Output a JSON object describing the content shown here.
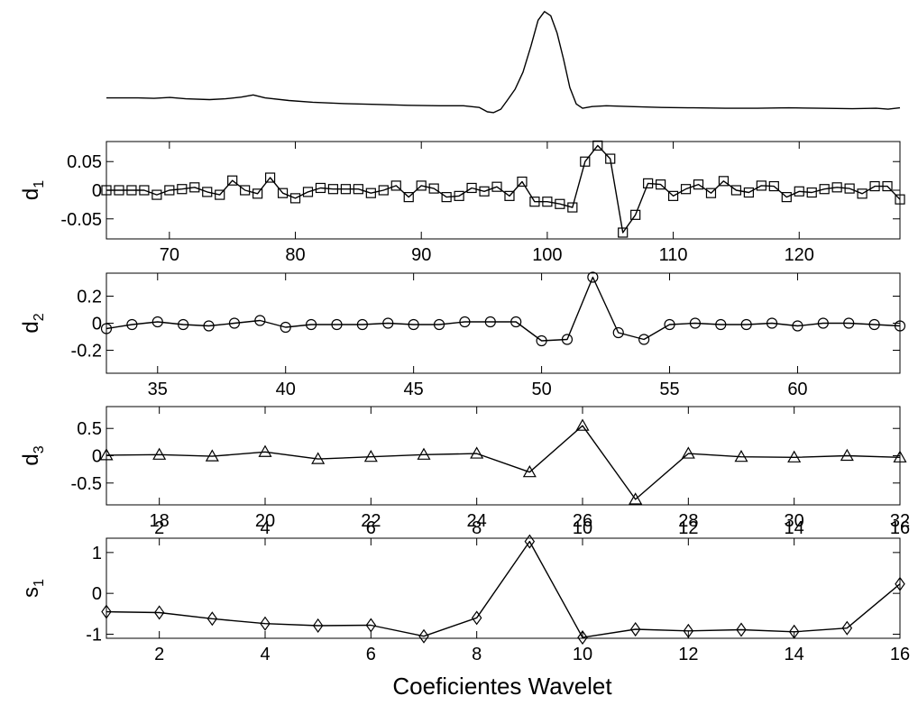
{
  "xlabel": "Coeficientes Wavelet",
  "chart_data": [
    {
      "id": "signal",
      "type": "line",
      "title": "",
      "ylabel": "",
      "xlim": [
        0,
        1000
      ],
      "ylim": [
        -0.15,
        1.05
      ],
      "show_axes": false,
      "points": [
        [
          0,
          0.0
        ],
        [
          40,
          0.0
        ],
        [
          60,
          -0.005
        ],
        [
          80,
          0.005
        ],
        [
          100,
          -0.01
        ],
        [
          130,
          -0.02
        ],
        [
          150,
          -0.01
        ],
        [
          170,
          0.01
        ],
        [
          185,
          0.035
        ],
        [
          200,
          0.0
        ],
        [
          230,
          -0.03
        ],
        [
          260,
          -0.05
        ],
        [
          300,
          -0.065
        ],
        [
          340,
          -0.075
        ],
        [
          380,
          -0.085
        ],
        [
          420,
          -0.09
        ],
        [
          450,
          -0.09
        ],
        [
          470,
          -0.11
        ],
        [
          480,
          -0.16
        ],
        [
          488,
          -0.17
        ],
        [
          497,
          -0.13
        ],
        [
          505,
          -0.03
        ],
        [
          515,
          0.1
        ],
        [
          525,
          0.3
        ],
        [
          535,
          0.6
        ],
        [
          544,
          0.9
        ],
        [
          552,
          1.0
        ],
        [
          560,
          0.95
        ],
        [
          568,
          0.75
        ],
        [
          576,
          0.45
        ],
        [
          584,
          0.12
        ],
        [
          592,
          -0.07
        ],
        [
          600,
          -0.12
        ],
        [
          612,
          -0.1
        ],
        [
          630,
          -0.09
        ],
        [
          660,
          -0.1
        ],
        [
          700,
          -0.11
        ],
        [
          740,
          -0.115
        ],
        [
          780,
          -0.12
        ],
        [
          820,
          -0.12
        ],
        [
          860,
          -0.115
        ],
        [
          900,
          -0.12
        ],
        [
          940,
          -0.125
        ],
        [
          970,
          -0.12
        ],
        [
          985,
          -0.13
        ],
        [
          1000,
          -0.115
        ]
      ]
    },
    {
      "id": "d1",
      "type": "line",
      "ylabel_main": "d",
      "ylabel_sub": "1",
      "xlim": [
        65,
        128
      ],
      "ylim": [
        -0.085,
        0.085
      ],
      "xticks": [
        70,
        80,
        90,
        100,
        110,
        120
      ],
      "xtick_labels": [
        "70",
        "80",
        "90",
        "100",
        "110",
        "120"
      ],
      "xtick_pos": "bottom",
      "yticks": [
        0.05,
        0,
        -0.05
      ],
      "ytick_labels": [
        "0.05",
        "0",
        "-0.05"
      ],
      "marker": "square",
      "x": [
        65,
        66,
        67,
        68,
        69,
        70,
        71,
        72,
        73,
        74,
        75,
        76,
        77,
        78,
        79,
        80,
        81,
        82,
        83,
        84,
        85,
        86,
        87,
        88,
        89,
        90,
        91,
        92,
        93,
        94,
        95,
        96,
        97,
        98,
        99,
        100,
        101,
        102,
        103,
        104,
        105,
        106,
        107,
        108,
        109,
        110,
        111,
        112,
        113,
        114,
        115,
        116,
        117,
        118,
        119,
        120,
        121,
        122,
        123,
        124,
        125,
        126,
        127,
        128
      ],
      "values": [
        0,
        0,
        0,
        0,
        -0.008,
        0,
        0.002,
        0.005,
        -0.003,
        -0.008,
        0.017,
        0,
        -0.006,
        0.022,
        -0.005,
        -0.014,
        -0.003,
        0.004,
        0.002,
        0.002,
        0.002,
        -0.005,
        0,
        0.008,
        -0.012,
        0.008,
        0.003,
        -0.012,
        -0.01,
        0.004,
        -0.002,
        0.006,
        -0.01,
        0.015,
        -0.02,
        -0.02,
        -0.024,
        -0.03,
        0.05,
        0.078,
        0.055,
        -0.074,
        -0.043,
        0.012,
        0.01,
        -0.01,
        0.002,
        0.01,
        -0.005,
        0.016,
        0,
        -0.004,
        0.008,
        0.007,
        -0.012,
        -0.002,
        -0.004,
        0.002,
        0.005,
        0.003,
        -0.006,
        0.007,
        0.007,
        -0.016
      ]
    },
    {
      "id": "d2",
      "type": "line",
      "ylabel_main": "d",
      "ylabel_sub": "2",
      "xlim": [
        33,
        64
      ],
      "ylim": [
        -0.37,
        0.37
      ],
      "xticks": [
        35,
        40,
        45,
        50,
        55,
        60
      ],
      "xtick_labels": [
        "35",
        "40",
        "45",
        "50",
        "55",
        "60"
      ],
      "xtick_pos": "bottom",
      "yticks": [
        0.2,
        0,
        -0.2
      ],
      "ytick_labels": [
        "0.2",
        "0",
        "-0.2"
      ],
      "marker": "circle",
      "x": [
        33,
        34,
        35,
        36,
        37,
        38,
        39,
        40,
        41,
        42,
        43,
        44,
        45,
        46,
        47,
        48,
        49,
        50,
        51,
        52,
        53,
        54,
        55,
        56,
        57,
        58,
        59,
        60,
        61,
        62,
        63,
        64
      ],
      "values": [
        -0.04,
        -0.01,
        0.01,
        -0.01,
        -0.02,
        0,
        0.02,
        -0.03,
        -0.01,
        -0.01,
        -0.01,
        0,
        -0.01,
        -0.01,
        0.01,
        0.01,
        0.01,
        -0.13,
        -0.12,
        0.34,
        -0.07,
        -0.12,
        -0.01,
        0,
        -0.01,
        -0.01,
        0,
        -0.02,
        0,
        0,
        -0.01,
        -0.02
      ]
    },
    {
      "id": "d3",
      "type": "line",
      "ylabel_main": "d",
      "ylabel_sub": "3",
      "xlim": [
        17,
        32
      ],
      "ylim": [
        -0.9,
        0.9
      ],
      "xticks": [
        18,
        20,
        22,
        24,
        26,
        28,
        30,
        32
      ],
      "xtick_labels": [
        "18",
        "20",
        "22",
        "24",
        "26",
        "28",
        "30",
        "32"
      ],
      "xtick_pos": "bottom",
      "yticks": [
        0.5,
        0,
        -0.5
      ],
      "ytick_labels": [
        "0.5",
        "0",
        "-0.5"
      ],
      "marker": "triangle",
      "x": [
        17,
        18,
        19,
        20,
        21,
        22,
        23,
        24,
        25,
        26,
        27,
        28,
        29,
        30,
        31,
        32
      ],
      "values": [
        0.01,
        0.02,
        -0.01,
        0.07,
        -0.06,
        -0.02,
        0.02,
        0.04,
        -0.3,
        0.55,
        -0.8,
        0.04,
        -0.02,
        -0.03,
        0,
        -0.03
      ]
    },
    {
      "id": "s1",
      "type": "line",
      "ylabel_main": "s",
      "ylabel_sub": "1",
      "xlim": [
        1,
        16
      ],
      "ylim": [
        -1.1,
        1.35
      ],
      "xticks": [
        2,
        4,
        6,
        8,
        10,
        12,
        14,
        16
      ],
      "xtick_labels": [
        "2",
        "4",
        "6",
        "8",
        "10",
        "12",
        "14",
        "16"
      ],
      "xtick_pos": "both",
      "yticks": [
        1,
        0,
        -1
      ],
      "ytick_labels": [
        "1",
        "0",
        "-1"
      ],
      "marker": "diamond",
      "x": [
        1,
        2,
        3,
        4,
        5,
        6,
        7,
        8,
        9,
        10,
        11,
        12,
        13,
        14,
        15,
        16
      ],
      "values": [
        -0.45,
        -0.47,
        -0.62,
        -0.74,
        -0.79,
        -0.78,
        -1.05,
        -0.6,
        1.27,
        -1.08,
        -0.88,
        -0.92,
        -0.89,
        -0.94,
        -0.85,
        0.23
      ]
    }
  ]
}
